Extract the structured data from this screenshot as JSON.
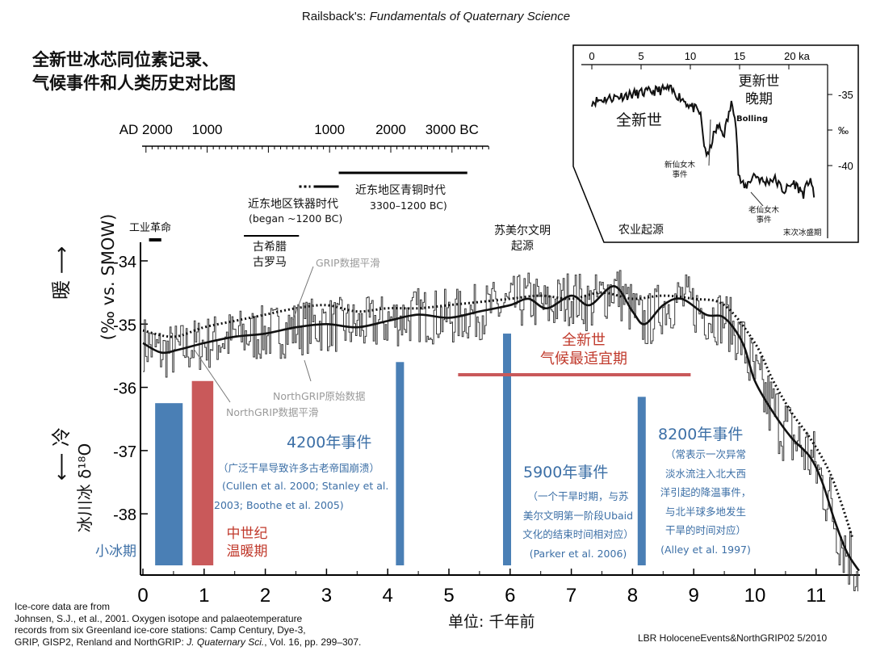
{
  "attribution": {
    "prefix": "Railsback's: ",
    "book": "Fundamentals of Quaternary Science"
  },
  "title": {
    "line1": "全新世冰芯同位素记录、",
    "line2": "气候事件和人类历史对比图"
  },
  "timeline": {
    "ticks": [
      {
        "label": "AD 2000",
        "ka": 0.05
      },
      {
        "label": "1000",
        "ka": 1.05
      },
      {
        "label": "1000",
        "ka": 3.05
      },
      {
        "label": "2000",
        "ka": 4.05
      },
      {
        "label": "3000 BC",
        "ka": 5.05
      }
    ],
    "bronze_age": {
      "label1": "近东地区青铜时代",
      "label2": "3300–1200 BC)",
      "start_ka": 5.3,
      "end_ka": 3.2
    },
    "iron_age": {
      "label1": "近东地区铁器时代",
      "label2": "(began ~1200 BC)",
      "start_ka": 3.2,
      "end_ka": 2.5
    },
    "industrial": {
      "label": "工业革命",
      "start_ka": 0.1,
      "end_ka": 0.3
    },
    "greek_roman": {
      "label1": "古希腊",
      "label2": "古罗马",
      "start_ka": 1.65,
      "end_ka": 2.55
    },
    "sumerian": {
      "label1": "苏美尔文明",
      "label2": "起源",
      "ka": 5.9
    },
    "agriculture": {
      "label": "农业起源",
      "ka": 7.85
    }
  },
  "y_axis": {
    "label_warm": "暖",
    "label_cold": "冷",
    "unit": "(‰ vs. SMOW)",
    "name": "冰川冰 δ¹⁸O"
  },
  "x_axis": {
    "label": "单位:  千年前"
  },
  "series_labels": {
    "grip_smooth": "GRIP数据平滑",
    "ngrip_raw": "NorthGRIP原始数据",
    "ngrip_smooth": "NorthGRIP数据平滑"
  },
  "events": {
    "lia": {
      "label": "小冰期",
      "start_ka": 0.2,
      "end_ka": 0.65,
      "top": -36.25
    },
    "mwp": {
      "label1": "中世纪",
      "label2": "温暖期",
      "start_ka": 0.8,
      "end_ka": 1.15,
      "top": -35.9
    },
    "e4200": {
      "title": "4200年事件",
      "desc1": "（广泛干旱导致许多古老帝国崩溃）",
      "desc2": "(Cullen et al. 2000; Stanley et al.",
      "desc3": "2003; Boothe et al. 2005)",
      "ka": 4.2,
      "top": -35.6
    },
    "e5900": {
      "title": "5900年事件",
      "desc1": "（一个干旱时期，与苏",
      "desc2": "美尔文明第一阶段Ubaid",
      "desc3": "文化的结束时间相对应）",
      "desc4": "(Parker et al. 2006)",
      "ka": 5.95,
      "top": -35.15
    },
    "e8200": {
      "title": "8200年事件",
      "desc1": "（常表示一次异常",
      "desc2": "淡水流注入北大西",
      "desc3": "洋引起的降温事件，",
      "desc4": "与北半球多地发生",
      "desc5": "干旱的时间对应）",
      "desc6": "(Alley et al. 1997)",
      "ka": 8.15,
      "top": -36.15
    },
    "holocene_optimum": {
      "label1": "全新世",
      "label2": "气候最适宜期",
      "start_ka": 5.15,
      "end_ka": 8.95,
      "level": -35.8
    }
  },
  "inset": {
    "x_ticks": [
      "0",
      "5",
      "10",
      "15",
      "20 ka"
    ],
    "y_ticks": [
      "-35",
      "‰",
      "-40"
    ],
    "labels": {
      "holocene": "全新世",
      "pleistocene1": "更新世",
      "pleistocene2": "晚期",
      "bolling": "Bolling",
      "yd1": "新仙女木",
      "yd2": "事件",
      "od1": "老仙女木",
      "od2": "事件",
      "lgm": "末次冰盛期"
    }
  },
  "source_note": {
    "line1": "Ice-core data are from",
    "line2": "Johnsen, S.J., et al., 2001. Oxygen isotope and palaeotemperature",
    "line3": "records from six Greenland ice-core stations: Camp Century, Dye-3,",
    "line4a": "GRIP, GISP2, Renland and NorthGRIP: ",
    "line4b": "J. Quaternary Sci.",
    "line4c": ", Vol. 16, pp. 299–307."
  },
  "footer": "LBR HoloceneEvents&NorthGRIP02  5/2010",
  "chart_data": {
    "type": "line",
    "title": "全新世冰芯同位素记录、气候事件和人类历史对比图",
    "xlabel": "单位:  千年前",
    "ylabel": "冰川冰 δ¹⁸O (‰ vs. SMOW)",
    "xlim": [
      0,
      11.7
    ],
    "ylim": [
      -38.8,
      -33.5
    ],
    "x_ticks": [
      0,
      1,
      2,
      3,
      4,
      5,
      6,
      7,
      8,
      9,
      10,
      11
    ],
    "y_ticks": [
      -34,
      -35,
      -36,
      -37,
      -38
    ],
    "series": [
      {
        "name": "NorthGRIP数据平滑",
        "style": "solid",
        "x": [
          0,
          0.3,
          0.6,
          1.0,
          1.5,
          2.0,
          2.5,
          3.0,
          3.5,
          4.0,
          4.5,
          5.0,
          5.5,
          6.0,
          6.3,
          6.6,
          7.0,
          7.3,
          7.7,
          8.0,
          8.2,
          8.5,
          8.8,
          9.2,
          9.5,
          9.8,
          10.0,
          10.3,
          10.6,
          10.9,
          11.1,
          11.3,
          11.5,
          11.7
        ],
        "y": [
          -35.3,
          -35.45,
          -35.4,
          -35.3,
          -35.2,
          -35.15,
          -35.05,
          -35.0,
          -35.05,
          -34.95,
          -34.85,
          -34.9,
          -34.8,
          -34.7,
          -34.6,
          -34.75,
          -34.55,
          -34.7,
          -34.4,
          -34.8,
          -35.0,
          -34.7,
          -34.6,
          -34.85,
          -34.9,
          -35.3,
          -35.9,
          -36.4,
          -36.8,
          -37.1,
          -37.5,
          -38.1,
          -38.6,
          -38.9
        ]
      },
      {
        "name": "GRIP数据平滑",
        "style": "dotted",
        "x": [
          0,
          0.5,
          1.0,
          1.5,
          2.0,
          2.5,
          3.0,
          3.5,
          4.0,
          4.5,
          5.0,
          5.5,
          6.0,
          6.5,
          7.0,
          7.5,
          8.0,
          8.5,
          9.0,
          9.5,
          10.0,
          10.3,
          10.6,
          10.9,
          11.2,
          11.4,
          11.6
        ],
        "y": [
          -35.1,
          -35.2,
          -35.05,
          -34.95,
          -34.85,
          -34.75,
          -34.7,
          -34.8,
          -34.75,
          -34.75,
          -34.7,
          -34.65,
          -34.6,
          -34.55,
          -34.6,
          -34.5,
          -34.6,
          -34.55,
          -34.6,
          -34.7,
          -35.3,
          -35.9,
          -36.4,
          -36.8,
          -37.3,
          -37.8,
          -38.4
        ]
      },
      {
        "name": "NorthGRIP原始数据",
        "style": "noisy",
        "x_range": [
          0,
          11.7
        ],
        "mean": "follows NorthGRIP smoothed",
        "amplitude": 0.45
      }
    ]
  }
}
